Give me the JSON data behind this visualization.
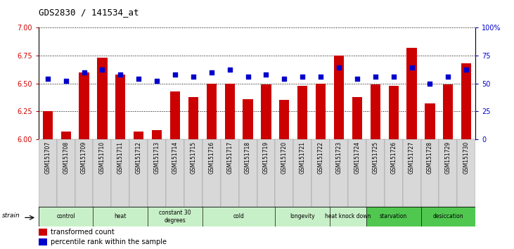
{
  "title": "GDS2830 / 141534_at",
  "samples": [
    "GSM151707",
    "GSM151708",
    "GSM151709",
    "GSM151710",
    "GSM151711",
    "GSM151712",
    "GSM151713",
    "GSM151714",
    "GSM151715",
    "GSM151716",
    "GSM151717",
    "GSM151718",
    "GSM151719",
    "GSM151720",
    "GSM151721",
    "GSM151722",
    "GSM151723",
    "GSM151724",
    "GSM151725",
    "GSM151726",
    "GSM151727",
    "GSM151728",
    "GSM151729",
    "GSM151730"
  ],
  "bar_values": [
    6.25,
    6.07,
    6.6,
    6.73,
    6.58,
    6.07,
    6.08,
    6.43,
    6.38,
    6.5,
    6.5,
    6.36,
    6.49,
    6.35,
    6.48,
    6.5,
    6.75,
    6.38,
    6.49,
    6.48,
    6.82,
    6.32,
    6.49,
    6.68
  ],
  "percentile_values": [
    54,
    52,
    60,
    62,
    58,
    54,
    52,
    58,
    56,
    60,
    62,
    56,
    58,
    54,
    56,
    56,
    64,
    54,
    56,
    56,
    64,
    50,
    56,
    62
  ],
  "groups": [
    {
      "label": "control",
      "start": 0,
      "end": 3,
      "light": true
    },
    {
      "label": "heat",
      "start": 3,
      "end": 6,
      "light": true
    },
    {
      "label": "constant 30\ndegrees",
      "start": 6,
      "end": 9,
      "light": true
    },
    {
      "label": "cold",
      "start": 9,
      "end": 13,
      "light": true
    },
    {
      "label": "longevity",
      "start": 13,
      "end": 16,
      "light": true
    },
    {
      "label": "heat knock down",
      "start": 16,
      "end": 18,
      "light": true
    },
    {
      "label": "starvation",
      "start": 18,
      "end": 21,
      "light": false
    },
    {
      "label": "desiccation",
      "start": 21,
      "end": 24,
      "light": false
    }
  ],
  "group_color_light": "#c8f0c8",
  "group_color_dark": "#50c850",
  "bar_color": "#cc0000",
  "dot_color": "#0000cc",
  "ylim_left": [
    6.0,
    7.0
  ],
  "ylim_right": [
    0,
    100
  ],
  "yticks_left": [
    6.0,
    6.25,
    6.5,
    6.75,
    7.0
  ],
  "yticks_right": [
    0,
    25,
    50,
    75,
    100
  ],
  "bar_bottom": 6.0,
  "background_color": "#ffffff",
  "tick_label_color_left": "#cc0000",
  "tick_label_color_right": "#0000cc",
  "sample_bg_color": "#d8d8d8"
}
